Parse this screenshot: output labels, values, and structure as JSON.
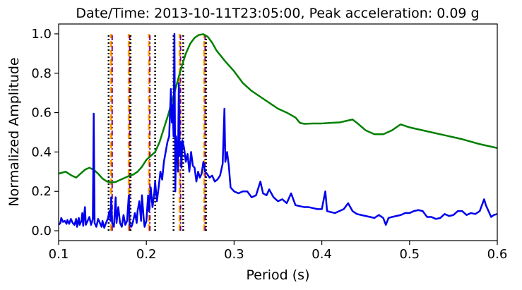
{
  "chart_data": {
    "type": "line",
    "title": "Date/Time: 2013-10-11T23:05:00, Peak acceleration: 0.09 g",
    "xlabel": "Period (s)",
    "ylabel": "Normalized Amplitude",
    "xlim": [
      0.1,
      0.6
    ],
    "ylim": [
      -0.05,
      1.05
    ],
    "grid": false,
    "x_ticks": [
      0.1,
      0.2,
      0.3,
      0.4,
      0.5,
      0.6
    ],
    "x_tick_labels": [
      "0.1",
      "0.2",
      "0.3",
      "0.4",
      "0.5",
      "0.6"
    ],
    "y_ticks": [
      0.0,
      0.2,
      0.4,
      0.6,
      0.8,
      1.0
    ],
    "y_tick_labels": [
      "0.0",
      "0.2",
      "0.4",
      "0.6",
      "0.8",
      "1.0"
    ],
    "colors": {
      "blue_series": "#0000ee",
      "green_series": "#008000",
      "orange_lines": "#ffa500",
      "purple_lines": "#800080",
      "black_dotted": "#000000"
    },
    "series": [
      {
        "color": "#008000",
        "points": [
          [
            0.1,
            0.29
          ],
          [
            0.108,
            0.3
          ],
          [
            0.115,
            0.28
          ],
          [
            0.12,
            0.27
          ],
          [
            0.125,
            0.29
          ],
          [
            0.13,
            0.31
          ],
          [
            0.135,
            0.32
          ],
          [
            0.14,
            0.31
          ],
          [
            0.145,
            0.29
          ],
          [
            0.15,
            0.265
          ],
          [
            0.155,
            0.25
          ],
          [
            0.16,
            0.245
          ],
          [
            0.165,
            0.248
          ],
          [
            0.17,
            0.258
          ],
          [
            0.175,
            0.268
          ],
          [
            0.18,
            0.278
          ],
          [
            0.185,
            0.285
          ],
          [
            0.19,
            0.3
          ],
          [
            0.195,
            0.325
          ],
          [
            0.2,
            0.36
          ],
          [
            0.205,
            0.38
          ],
          [
            0.21,
            0.4
          ],
          [
            0.215,
            0.45
          ],
          [
            0.22,
            0.52
          ],
          [
            0.225,
            0.59
          ],
          [
            0.23,
            0.67
          ],
          [
            0.235,
            0.75
          ],
          [
            0.24,
            0.83
          ],
          [
            0.245,
            0.9
          ],
          [
            0.25,
            0.95
          ],
          [
            0.255,
            0.98
          ],
          [
            0.26,
            0.995
          ],
          [
            0.265,
            0.998
          ],
          [
            0.27,
            0.985
          ],
          [
            0.275,
            0.955
          ],
          [
            0.28,
            0.915
          ],
          [
            0.29,
            0.86
          ],
          [
            0.3,
            0.81
          ],
          [
            0.31,
            0.75
          ],
          [
            0.32,
            0.71
          ],
          [
            0.33,
            0.68
          ],
          [
            0.34,
            0.65
          ],
          [
            0.35,
            0.62
          ],
          [
            0.36,
            0.6
          ],
          [
            0.37,
            0.575
          ],
          [
            0.375,
            0.548
          ],
          [
            0.38,
            0.543
          ],
          [
            0.39,
            0.545
          ],
          [
            0.4,
            0.545
          ],
          [
            0.41,
            0.548
          ],
          [
            0.42,
            0.55
          ],
          [
            0.43,
            0.56
          ],
          [
            0.435,
            0.565
          ],
          [
            0.44,
            0.548
          ],
          [
            0.45,
            0.51
          ],
          [
            0.46,
            0.49
          ],
          [
            0.47,
            0.49
          ],
          [
            0.48,
            0.51
          ],
          [
            0.488,
            0.535
          ],
          [
            0.49,
            0.54
          ],
          [
            0.5,
            0.525
          ],
          [
            0.52,
            0.505
          ],
          [
            0.54,
            0.485
          ],
          [
            0.56,
            0.465
          ],
          [
            0.58,
            0.44
          ],
          [
            0.6,
            0.42
          ]
        ]
      },
      {
        "color": "#0000ee",
        "points": [
          [
            0.1,
            0.03
          ],
          [
            0.102,
            0.04
          ],
          [
            0.103,
            0.065
          ],
          [
            0.105,
            0.045
          ],
          [
            0.107,
            0.05
          ],
          [
            0.109,
            0.035
          ],
          [
            0.11,
            0.055
          ],
          [
            0.112,
            0.035
          ],
          [
            0.114,
            0.06
          ],
          [
            0.116,
            0.04
          ],
          [
            0.118,
            0.03
          ],
          [
            0.12,
            0.06
          ],
          [
            0.121,
            0.02
          ],
          [
            0.123,
            0.065
          ],
          [
            0.124,
            0.03
          ],
          [
            0.126,
            0.05
          ],
          [
            0.127,
            0.09
          ],
          [
            0.128,
            0.025
          ],
          [
            0.13,
            0.12
          ],
          [
            0.131,
            0.03
          ],
          [
            0.133,
            0.05
          ],
          [
            0.135,
            0.07
          ],
          [
            0.137,
            0.03
          ],
          [
            0.139,
            0.06
          ],
          [
            0.14,
            0.595
          ],
          [
            0.141,
            0.04
          ],
          [
            0.143,
            0.02
          ],
          [
            0.145,
            0.06
          ],
          [
            0.147,
            0.04
          ],
          [
            0.149,
            0.02
          ],
          [
            0.15,
            0.05
          ],
          [
            0.152,
            0.015
          ],
          [
            0.154,
            0.04
          ],
          [
            0.156,
            0.06
          ],
          [
            0.158,
            0.1
          ],
          [
            0.159,
            0.05
          ],
          [
            0.16,
            0.17
          ],
          [
            0.161,
            0.04
          ],
          [
            0.163,
            0.02
          ],
          [
            0.165,
            0.17
          ],
          [
            0.166,
            0.04
          ],
          [
            0.168,
            0.12
          ],
          [
            0.17,
            0.04
          ],
          [
            0.172,
            0.02
          ],
          [
            0.174,
            0.08
          ],
          [
            0.176,
            0.03
          ],
          [
            0.178,
            0.05
          ],
          [
            0.18,
            0.18
          ],
          [
            0.181,
            0.03
          ],
          [
            0.183,
            0.02
          ],
          [
            0.185,
            0.05
          ],
          [
            0.187,
            0.09
          ],
          [
            0.189,
            0.04
          ],
          [
            0.19,
            0.1
          ],
          [
            0.192,
            0.15
          ],
          [
            0.194,
            0.05
          ],
          [
            0.195,
            0.18
          ],
          [
            0.197,
            0.06
          ],
          [
            0.198,
            0.02
          ],
          [
            0.2,
            0.05
          ],
          [
            0.202,
            0.18
          ],
          [
            0.203,
            0.1
          ],
          [
            0.205,
            0.22
          ],
          [
            0.207,
            0.12
          ],
          [
            0.209,
            0.19
          ],
          [
            0.21,
            0.25
          ],
          [
            0.212,
            0.15
          ],
          [
            0.214,
            0.22
          ],
          [
            0.216,
            0.3
          ],
          [
            0.218,
            0.26
          ],
          [
            0.22,
            0.35
          ],
          [
            0.222,
            0.4
          ],
          [
            0.224,
            0.45
          ],
          [
            0.226,
            0.48
          ],
          [
            0.227,
            0.6
          ],
          [
            0.228,
            0.72
          ],
          [
            0.229,
            0.55
          ],
          [
            0.23,
            0.64
          ],
          [
            0.231,
            0.48
          ],
          [
            0.232,
            1.0
          ],
          [
            0.233,
            0.2
          ],
          [
            0.234,
            0.48
          ],
          [
            0.235,
            0.4
          ],
          [
            0.236,
            0.3
          ],
          [
            0.237,
            0.75
          ],
          [
            0.238,
            0.38
          ],
          [
            0.239,
            0.45
          ],
          [
            0.24,
            0.32
          ],
          [
            0.241,
            0.46
          ],
          [
            0.243,
            0.42
          ],
          [
            0.245,
            0.35
          ],
          [
            0.247,
            0.39
          ],
          [
            0.249,
            0.3
          ],
          [
            0.251,
            0.4
          ],
          [
            0.253,
            0.33
          ],
          [
            0.255,
            0.32
          ],
          [
            0.257,
            0.25
          ],
          [
            0.259,
            0.3
          ],
          [
            0.261,
            0.27
          ],
          [
            0.263,
            0.29
          ],
          [
            0.265,
            0.35
          ],
          [
            0.267,
            0.3
          ],
          [
            0.269,
            0.29
          ],
          [
            0.272,
            0.27
          ],
          [
            0.275,
            0.28
          ],
          [
            0.278,
            0.25
          ],
          [
            0.281,
            0.26
          ],
          [
            0.284,
            0.28
          ],
          [
            0.287,
            0.34
          ],
          [
            0.289,
            0.62
          ],
          [
            0.29,
            0.35
          ],
          [
            0.292,
            0.4
          ],
          [
            0.294,
            0.33
          ],
          [
            0.296,
            0.22
          ],
          [
            0.3,
            0.2
          ],
          [
            0.305,
            0.19
          ],
          [
            0.31,
            0.2
          ],
          [
            0.315,
            0.2
          ],
          [
            0.32,
            0.17
          ],
          [
            0.325,
            0.18
          ],
          [
            0.33,
            0.25
          ],
          [
            0.333,
            0.19
          ],
          [
            0.337,
            0.18
          ],
          [
            0.34,
            0.21
          ],
          [
            0.345,
            0.17
          ],
          [
            0.35,
            0.15
          ],
          [
            0.355,
            0.16
          ],
          [
            0.36,
            0.14
          ],
          [
            0.365,
            0.19
          ],
          [
            0.37,
            0.13
          ],
          [
            0.375,
            0.125
          ],
          [
            0.38,
            0.12
          ],
          [
            0.385,
            0.12
          ],
          [
            0.39,
            0.115
          ],
          [
            0.395,
            0.11
          ],
          [
            0.4,
            0.11
          ],
          [
            0.404,
            0.2
          ],
          [
            0.406,
            0.1
          ],
          [
            0.41,
            0.095
          ],
          [
            0.415,
            0.09
          ],
          [
            0.42,
            0.1
          ],
          [
            0.425,
            0.11
          ],
          [
            0.43,
            0.14
          ],
          [
            0.435,
            0.1
          ],
          [
            0.44,
            0.085
          ],
          [
            0.445,
            0.08
          ],
          [
            0.45,
            0.075
          ],
          [
            0.455,
            0.07
          ],
          [
            0.46,
            0.065
          ],
          [
            0.465,
            0.08
          ],
          [
            0.47,
            0.065
          ],
          [
            0.473,
            0.03
          ],
          [
            0.476,
            0.065
          ],
          [
            0.48,
            0.07
          ],
          [
            0.485,
            0.075
          ],
          [
            0.49,
            0.08
          ],
          [
            0.495,
            0.09
          ],
          [
            0.5,
            0.09
          ],
          [
            0.505,
            0.1
          ],
          [
            0.51,
            0.105
          ],
          [
            0.515,
            0.1
          ],
          [
            0.52,
            0.07
          ],
          [
            0.525,
            0.07
          ],
          [
            0.53,
            0.06
          ],
          [
            0.535,
            0.065
          ],
          [
            0.54,
            0.085
          ],
          [
            0.545,
            0.075
          ],
          [
            0.55,
            0.08
          ],
          [
            0.555,
            0.1
          ],
          [
            0.56,
            0.1
          ],
          [
            0.565,
            0.08
          ],
          [
            0.57,
            0.09
          ],
          [
            0.575,
            0.085
          ],
          [
            0.58,
            0.1
          ],
          [
            0.585,
            0.16
          ],
          [
            0.587,
            0.13
          ],
          [
            0.59,
            0.1
          ],
          [
            0.593,
            0.07
          ],
          [
            0.596,
            0.08
          ],
          [
            0.6,
            0.085
          ]
        ]
      }
    ],
    "vertical_lines": {
      "orange_dashed": [
        0.16,
        0.18,
        0.203,
        0.238,
        0.266
      ],
      "purple_dashdot": [
        0.161,
        0.181,
        0.204,
        0.239,
        0.267
      ],
      "black_dotted": [
        0.157,
        0.182,
        0.21,
        0.231,
        0.242,
        0.268
      ]
    }
  }
}
